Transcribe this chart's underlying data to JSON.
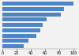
{
  "values": [
    100,
    87,
    82,
    62,
    57,
    53,
    48,
    37,
    30
  ],
  "bar_color": "#4a86c8",
  "background_color": "#f2f2f2",
  "bar_height": 0.75,
  "xlim": [
    0,
    105
  ],
  "tick_fontsize": 3.5,
  "figure_width": 1.0,
  "figure_height": 0.71,
  "dpi": 100
}
